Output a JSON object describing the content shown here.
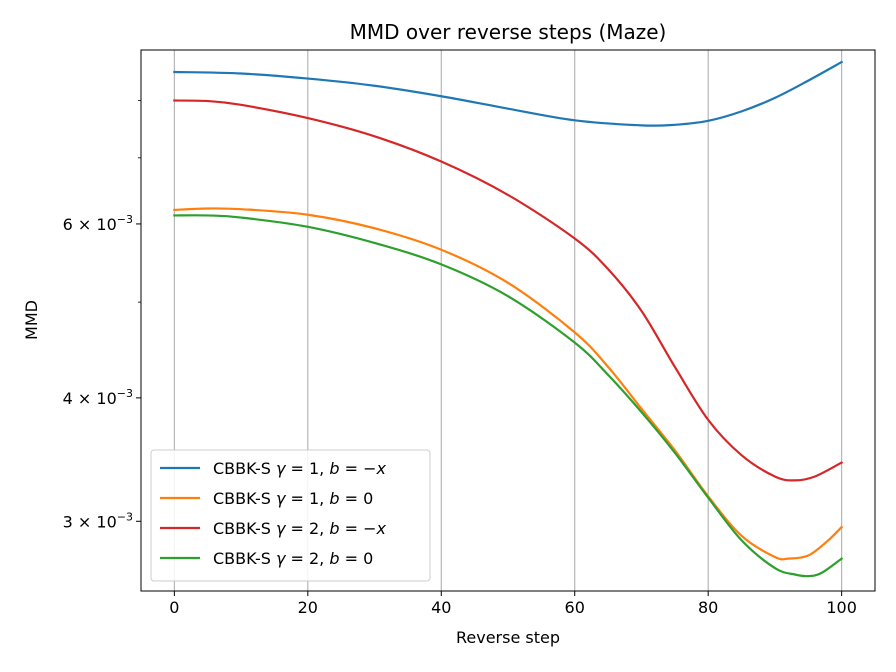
{
  "chart_data": {
    "type": "line",
    "title": "MMD over reverse steps (Maze)",
    "xlabel": "Reverse step",
    "ylabel": "MMD",
    "xlim": [
      -5,
      105
    ],
    "ylim": [
      0.00255,
      0.009
    ],
    "yscale": "log",
    "grid": "x",
    "legend_position": "lower-left",
    "x_ticks": [
      0,
      20,
      40,
      60,
      80,
      100
    ],
    "x_tick_labels": [
      "0",
      "20",
      "40",
      "60",
      "80",
      "100"
    ],
    "y_ticks": [
      {
        "value": 0.003,
        "base": "3 × 10",
        "exp": "−3"
      },
      {
        "value": 0.004,
        "base": "4 × 10",
        "exp": "−3"
      },
      {
        "value": 0.006,
        "base": "6 × 10",
        "exp": "−3"
      }
    ],
    "y_minor_ticks": [
      0.005,
      0.007,
      0.008
    ],
    "series": [
      {
        "name": "CBBK-S γ = 1, b = −x",
        "legend": {
          "pre": "CBBK-S ",
          "math": "γ",
          "mid1": " = 1, ",
          "var": "b",
          "mid2": " = −",
          "var2": "x"
        },
        "color": "#1f77b4",
        "x": [
          0,
          10,
          20,
          30,
          40,
          50,
          60,
          70,
          75,
          80,
          85,
          90,
          95,
          100
        ],
        "values": [
          0.00855,
          0.00852,
          0.00842,
          0.00828,
          0.00808,
          0.00785,
          0.00764,
          0.00755,
          0.00756,
          0.00763,
          0.0078,
          0.00805,
          0.00838,
          0.00875
        ]
      },
      {
        "name": "CBBK-S γ = 1, b = 0",
        "legend": {
          "pre": "CBBK-S ",
          "math": "γ",
          "mid1": " = 1, ",
          "var": "b",
          "mid2": " = 0",
          "var2": ""
        },
        "color": "#ff7f0e",
        "x": [
          0,
          5,
          10,
          20,
          30,
          40,
          50,
          60,
          65,
          70,
          75,
          80,
          85,
          90,
          92,
          95,
          98,
          100
        ],
        "values": [
          0.0062,
          0.00622,
          0.00621,
          0.00613,
          0.00594,
          0.00565,
          0.00523,
          0.00466,
          0.0043,
          0.0039,
          0.00354,
          0.00318,
          0.0029,
          0.00276,
          0.00275,
          0.00277,
          0.00287,
          0.00296
        ]
      },
      {
        "name": "CBBK-S γ = 2, b = −x",
        "legend": {
          "pre": "CBBK-S ",
          "math": "γ",
          "mid1": " = 2, ",
          "var": "b",
          "mid2": " = −",
          "var2": "x"
        },
        "color": "#d62728",
        "x": [
          0,
          5,
          10,
          20,
          30,
          40,
          50,
          60,
          65,
          70,
          75,
          80,
          85,
          90,
          93,
          96,
          100
        ],
        "values": [
          0.008,
          0.00799,
          0.00792,
          0.00768,
          0.00736,
          0.00694,
          0.00642,
          0.0058,
          0.0054,
          0.0049,
          0.0043,
          0.0038,
          0.0035,
          0.00333,
          0.0033,
          0.00333,
          0.00344
        ]
      },
      {
        "name": "CBBK-S γ = 2, b = 0",
        "legend": {
          "pre": "CBBK-S ",
          "math": "γ",
          "mid1": " = 2, ",
          "var": "b",
          "mid2": " = 0",
          "var2": ""
        },
        "color": "#2ca02c",
        "x": [
          0,
          5,
          10,
          20,
          30,
          40,
          50,
          60,
          65,
          70,
          75,
          80,
          85,
          90,
          93,
          95,
          97,
          100
        ],
        "values": [
          0.00612,
          0.00612,
          0.00609,
          0.00596,
          0.00574,
          0.00546,
          0.00507,
          0.00455,
          0.00422,
          0.00387,
          0.00352,
          0.00317,
          0.00287,
          0.00269,
          0.00265,
          0.00264,
          0.00266,
          0.00275
        ]
      }
    ]
  }
}
